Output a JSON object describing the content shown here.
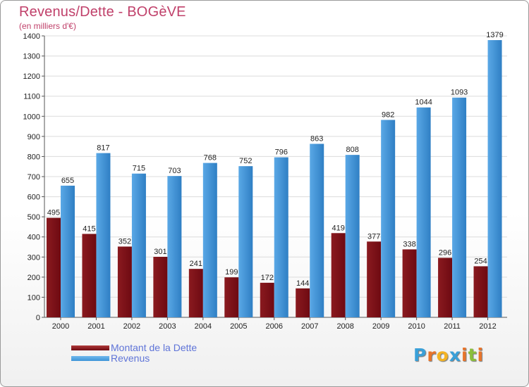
{
  "title": "Revenus/Dette - BOGèVE",
  "subtitle": "(en milliers d'€)",
  "chart_data": {
    "type": "bar",
    "title": "Revenus/Dette - BOGèVE",
    "subtitle": "(en milliers d'€)",
    "categories": [
      "2000",
      "2001",
      "2002",
      "2003",
      "2004",
      "2005",
      "2006",
      "2007",
      "2008",
      "2009",
      "2010",
      "2011",
      "2012"
    ],
    "series": [
      {
        "name": "Montant de la Dette",
        "color": "#6e0a12",
        "values": [
          495,
          415,
          352,
          301,
          241,
          199,
          172,
          144,
          419,
          377,
          338,
          296,
          254
        ]
      },
      {
        "name": "Revenus",
        "color": "#3f95d8",
        "values": [
          655,
          817,
          715,
          703,
          768,
          752,
          796,
          863,
          808,
          982,
          1044,
          1093,
          1379
        ]
      }
    ],
    "yticks": [
      0,
      100,
      200,
      300,
      400,
      500,
      600,
      700,
      800,
      900,
      1000,
      1100,
      1200,
      1300,
      1400
    ],
    "ylim": [
      0,
      1400
    ],
    "grid": true,
    "legend": "bottom-left"
  },
  "legend": {
    "items": [
      {
        "label": "Montant de la Dette",
        "color": "#6e0a12"
      },
      {
        "label": "Revenus",
        "color": "#3f95d8"
      }
    ]
  },
  "logo": {
    "letters": [
      "P",
      "r",
      "o",
      "x",
      "i",
      "t",
      "i"
    ],
    "colors": [
      "#3aa0d8",
      "#e8742a",
      "#f4b323",
      "#3aa0d8",
      "#e8742a",
      "#8bbf3c",
      "#e8742a"
    ]
  }
}
